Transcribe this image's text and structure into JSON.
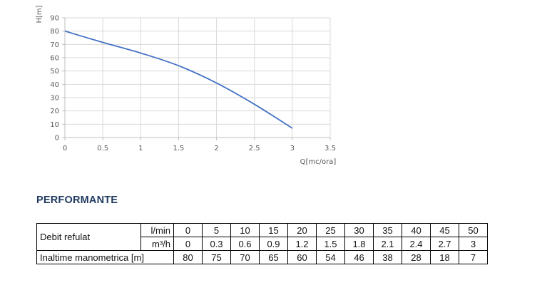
{
  "chart_data": {
    "type": "line",
    "ylabel": "H[m]",
    "xlabel": "Q[mc/ora]",
    "x": [
      0,
      0.5,
      1,
      1.5,
      2,
      2.5,
      3
    ],
    "series": [
      {
        "values": [
          80,
          71.5,
          63.5,
          54,
          41,
          25,
          7
        ]
      }
    ],
    "xlim": [
      0,
      3.5
    ],
    "ylim": [
      0,
      90
    ],
    "x_ticks": [
      "0",
      "0.5",
      "1",
      "1.5",
      "2",
      "2.5",
      "3",
      "3.5"
    ],
    "y_ticks": [
      "0",
      "10",
      "20",
      "30",
      "40",
      "50",
      "60",
      "70",
      "80",
      "90"
    ],
    "grid": true,
    "line_color": "#4472c4"
  },
  "section_title": "PERFORMANTE",
  "table": {
    "row1_label": "Debit refulat",
    "row1_unit": "l/min",
    "row2_unit": "m³/h",
    "row3_label": "Inaltime manometrica [m]",
    "lpm": [
      "0",
      "5",
      "10",
      "15",
      "20",
      "25",
      "30",
      "35",
      "40",
      "45",
      "50"
    ],
    "m3h": [
      "0",
      "0.3",
      "0.6",
      "0.9",
      "1.2",
      "1.5",
      "1.8",
      "2.1",
      "2.4",
      "2.7",
      "3"
    ],
    "head": [
      "80",
      "75",
      "70",
      "65",
      "60",
      "54",
      "46",
      "38",
      "28",
      "18",
      "7"
    ]
  }
}
